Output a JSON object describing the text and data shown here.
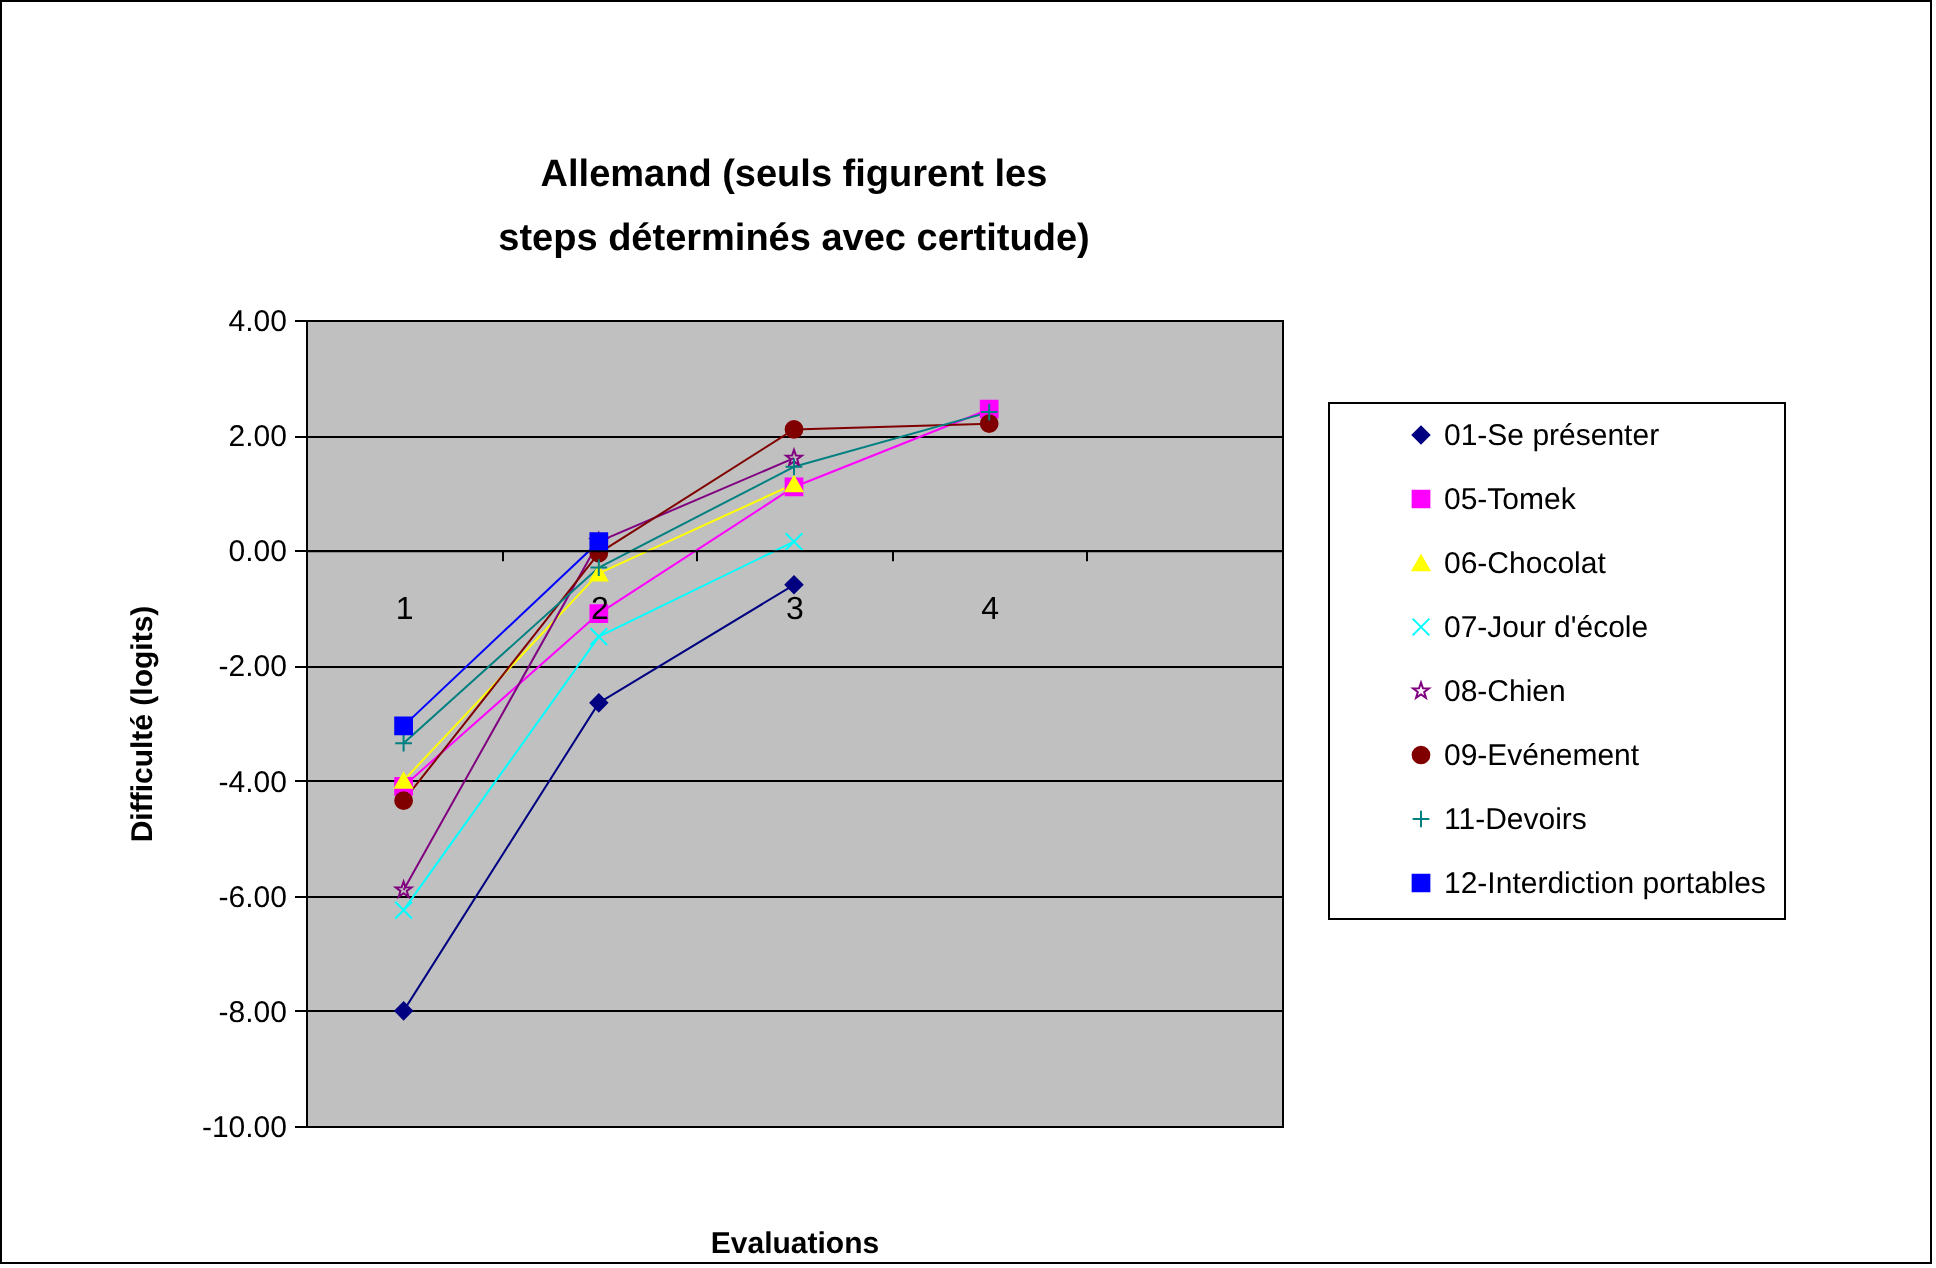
{
  "chart_data": {
    "type": "line",
    "title": "Allemand (seuls figurent les steps déterminés avec certitude)",
    "xlabel": "Evaluations",
    "ylabel": "Difficulté (logits)",
    "categories": [
      "1",
      "2",
      "3",
      "4",
      null
    ],
    "ylim": [
      -10,
      4
    ],
    "yticks": [
      {
        "value": -10,
        "label": "-10.00"
      },
      {
        "value": -8,
        "label": "-8.00"
      },
      {
        "value": -6,
        "label": "-6.00"
      },
      {
        "value": -4,
        "label": "-4.00"
      },
      {
        "value": -2,
        "label": "-2.00"
      },
      {
        "value": 0,
        "label": "0.00"
      },
      {
        "value": 2,
        "label": "2.00"
      },
      {
        "value": 4,
        "label": "4.00"
      }
    ],
    "grid": "y",
    "legend": "right",
    "line_style": "solid",
    "series": [
      {
        "name": "01-Se présenter",
        "color": "#000080",
        "marker": "diamond",
        "values": [
          -8.0,
          -2.65,
          -0.6,
          null,
          null
        ]
      },
      {
        "name": "05-Tomek",
        "color": "#ff00ff",
        "marker": "square",
        "values": [
          -4.1,
          -1.1,
          1.1,
          2.45,
          null
        ]
      },
      {
        "name": "06-Chocolat",
        "color": "#ffff00",
        "marker": "triangle",
        "values": [
          -4.0,
          -0.4,
          1.15,
          null,
          null
        ]
      },
      {
        "name": "07-Jour d'école",
        "color": "#00ffff",
        "marker": "x",
        "values": [
          -6.25,
          -1.5,
          0.15,
          null,
          null
        ]
      },
      {
        "name": "08-Chien",
        "color": "#800080",
        "marker": "star",
        "values": [
          -5.9,
          0.15,
          1.6,
          null,
          null
        ]
      },
      {
        "name": "09-Evénement",
        "color": "#800000",
        "marker": "circle",
        "values": [
          -4.35,
          -0.05,
          2.1,
          2.2,
          null
        ]
      },
      {
        "name": "11-Devoirs",
        "color": "#008080",
        "marker": "cross",
        "values": [
          -3.35,
          -0.3,
          1.45,
          2.4,
          null
        ]
      },
      {
        "name": "12-Interdiction portables",
        "color": "#0000ff",
        "marker": "square",
        "values": [
          -3.05,
          0.15,
          null,
          null,
          null
        ]
      }
    ]
  }
}
